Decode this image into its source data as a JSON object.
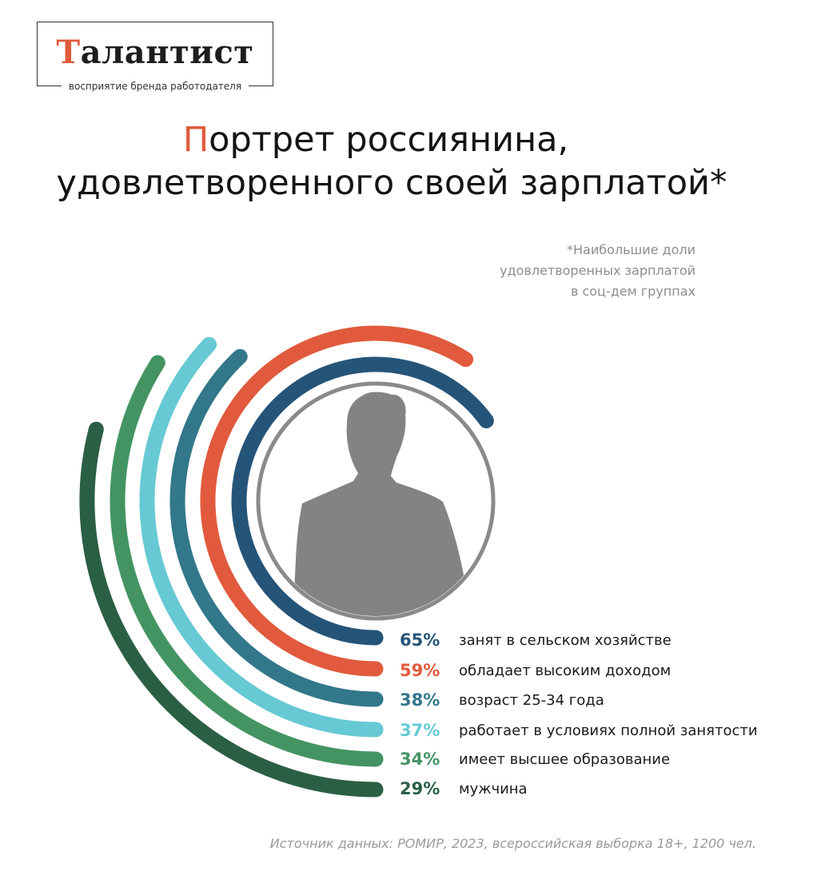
{
  "brand": {
    "name_first": "Т",
    "name_rest": "алантист",
    "tagline": "восприятие бренда работодателя"
  },
  "header": {
    "title_line1_first": "П",
    "title_line1_rest": "ортрет россиянина,",
    "title_line2": "удовлетворенного своей зарплатой*"
  },
  "footnote": {
    "lines": [
      "*Наибольшие доли",
      "удовлетворенных зарплатой",
      "в соц-дем группах"
    ]
  },
  "source": "Источник данных: РОМИР, 2023, всероссийская выборка 18+, 1200 чел.",
  "chart_data": {
    "type": "radial-bar",
    "center_icon": "person-silhouette-icon",
    "categories": [
      "занят в сельском хозяйстве",
      "обладает высоким доходом",
      "возраст 25-34 года",
      "работает в условиях полной занятости",
      "имеет высшее образование",
      "мужчина"
    ],
    "values": [
      65,
      59,
      38,
      37,
      34,
      29
    ],
    "value_labels": [
      "65%",
      "59%",
      "38%",
      "37%",
      "34%",
      "29%"
    ],
    "unit": "%",
    "colors": [
      "#255479",
      "#e15a3d",
      "#32778a",
      "#66c9d4",
      "#449463",
      "#2b5f45"
    ]
  }
}
